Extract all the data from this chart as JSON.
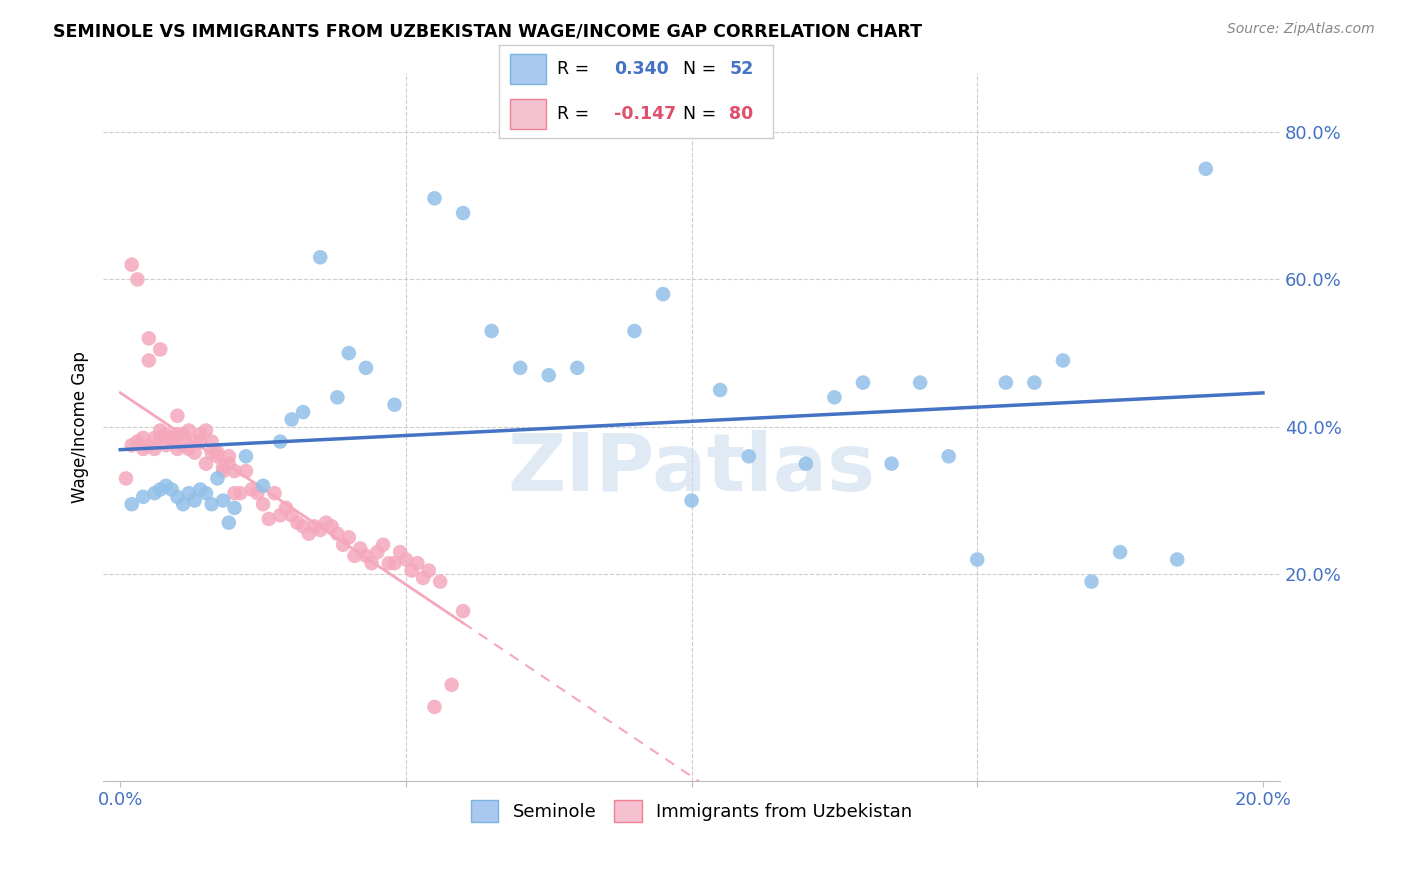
{
  "title": "SEMINOLE VS IMMIGRANTS FROM UZBEKISTAN WAGE/INCOME GAP CORRELATION CHART",
  "source": "Source: ZipAtlas.com",
  "ylabel": "Wage/Income Gap",
  "watermark": "ZIPatlas",
  "seminole_color": "#92c0e8",
  "uzbek_color": "#f5a8bc",
  "seminole_line_color": "#4472c4",
  "uzbek_line_color": "#f5a8bc",
  "background_color": "#ffffff",
  "grid_color": "#cccccc",
  "seminole_R": 0.34,
  "uzbek_R": -0.147,
  "seminole_N": 52,
  "uzbek_N": 80,
  "xlim": [
    0.0,
    0.2
  ],
  "ylim": [
    -0.08,
    0.88
  ],
  "right_yticks": [
    0.2,
    0.4,
    0.6,
    0.8
  ],
  "right_yticklabels": [
    "20.0%",
    "40.0%",
    "60.0%",
    "80.0%"
  ],
  "x_ticks": [
    0.0,
    0.05,
    0.1,
    0.15,
    0.2
  ],
  "x_ticklabels": [
    "0.0%",
    "",
    "",
    "",
    "20.0%"
  ],
  "seminole_x": [
    0.002,
    0.004,
    0.006,
    0.007,
    0.008,
    0.009,
    0.01,
    0.011,
    0.012,
    0.013,
    0.014,
    0.015,
    0.016,
    0.017,
    0.018,
    0.019,
    0.02,
    0.022,
    0.025,
    0.028,
    0.03,
    0.032,
    0.035,
    0.038,
    0.04,
    0.043,
    0.048,
    0.055,
    0.06,
    0.065,
    0.07,
    0.075,
    0.08,
    0.09,
    0.095,
    0.1,
    0.105,
    0.11,
    0.12,
    0.125,
    0.13,
    0.135,
    0.14,
    0.145,
    0.15,
    0.155,
    0.16,
    0.165,
    0.17,
    0.175,
    0.185,
    0.19
  ],
  "seminole_y": [
    0.295,
    0.305,
    0.31,
    0.315,
    0.32,
    0.315,
    0.305,
    0.295,
    0.31,
    0.3,
    0.315,
    0.31,
    0.295,
    0.33,
    0.3,
    0.27,
    0.29,
    0.36,
    0.32,
    0.38,
    0.41,
    0.42,
    0.63,
    0.44,
    0.5,
    0.48,
    0.43,
    0.71,
    0.69,
    0.53,
    0.48,
    0.47,
    0.48,
    0.53,
    0.58,
    0.3,
    0.45,
    0.36,
    0.35,
    0.44,
    0.46,
    0.35,
    0.46,
    0.36,
    0.22,
    0.46,
    0.46,
    0.49,
    0.19,
    0.23,
    0.22,
    0.75
  ],
  "uzbek_x": [
    0.001,
    0.002,
    0.002,
    0.003,
    0.003,
    0.004,
    0.004,
    0.005,
    0.005,
    0.005,
    0.006,
    0.006,
    0.007,
    0.007,
    0.007,
    0.008,
    0.008,
    0.009,
    0.009,
    0.01,
    0.01,
    0.01,
    0.011,
    0.011,
    0.012,
    0.012,
    0.013,
    0.013,
    0.014,
    0.014,
    0.015,
    0.015,
    0.016,
    0.016,
    0.017,
    0.017,
    0.018,
    0.018,
    0.019,
    0.019,
    0.02,
    0.02,
    0.021,
    0.022,
    0.023,
    0.024,
    0.025,
    0.026,
    0.027,
    0.028,
    0.029,
    0.03,
    0.031,
    0.032,
    0.033,
    0.034,
    0.035,
    0.036,
    0.037,
    0.038,
    0.039,
    0.04,
    0.041,
    0.042,
    0.043,
    0.044,
    0.045,
    0.046,
    0.047,
    0.048,
    0.049,
    0.05,
    0.051,
    0.052,
    0.053,
    0.054,
    0.055,
    0.056,
    0.058,
    0.06
  ],
  "uzbek_y": [
    0.33,
    0.62,
    0.375,
    0.38,
    0.6,
    0.385,
    0.37,
    0.49,
    0.52,
    0.375,
    0.37,
    0.385,
    0.505,
    0.385,
    0.395,
    0.375,
    0.39,
    0.38,
    0.385,
    0.37,
    0.39,
    0.415,
    0.39,
    0.375,
    0.37,
    0.395,
    0.38,
    0.365,
    0.39,
    0.38,
    0.395,
    0.35,
    0.365,
    0.38,
    0.365,
    0.36,
    0.34,
    0.345,
    0.35,
    0.36,
    0.34,
    0.31,
    0.31,
    0.34,
    0.315,
    0.31,
    0.295,
    0.275,
    0.31,
    0.28,
    0.29,
    0.28,
    0.27,
    0.265,
    0.255,
    0.265,
    0.26,
    0.27,
    0.265,
    0.255,
    0.24,
    0.25,
    0.225,
    0.235,
    0.225,
    0.215,
    0.23,
    0.24,
    0.215,
    0.215,
    0.23,
    0.22,
    0.205,
    0.215,
    0.195,
    0.205,
    0.02,
    0.19,
    0.05,
    0.15
  ]
}
